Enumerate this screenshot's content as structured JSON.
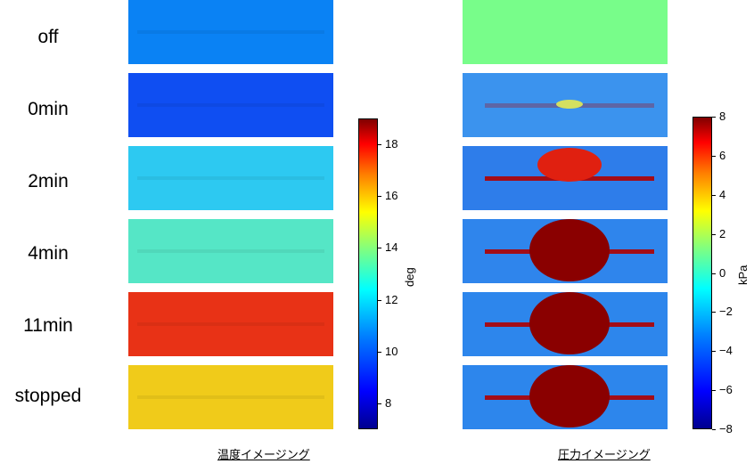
{
  "row_labels": [
    "off",
    "0min",
    "2min",
    "4min",
    "11min",
    "stopped"
  ],
  "temperature": {
    "caption": "温度イメージング",
    "colorbar": {
      "unit": "deg",
      "min": 7,
      "max": 19,
      "ticks": [
        "8",
        "10",
        "12",
        "14",
        "16",
        "18"
      ]
    },
    "panel_colors": [
      "#0a82f4",
      "#0f4ef2",
      "#2dc9f1",
      "#55e6c6",
      "#e83216",
      "#f0cb1a"
    ]
  },
  "pressure": {
    "caption": "圧力イメージング",
    "colorbar": {
      "unit": "kPa",
      "min": -8,
      "max": 8,
      "ticks": [
        "8",
        "6",
        "4",
        "2",
        "0",
        "−2",
        "−4",
        "−6",
        "−8"
      ]
    },
    "panel_colors": [
      "#78fd8a",
      "#3b93ee",
      "#2e7dea",
      "#2f85ec",
      "#2d86ec",
      "#2d86ec"
    ]
  },
  "chart_data": [
    {
      "type": "heatmap",
      "title": "温度イメージング",
      "rows": [
        "off",
        "0min",
        "2min",
        "4min",
        "11min",
        "stopped"
      ],
      "unit": "deg",
      "color_range": [
        7,
        19
      ],
      "approx_values": [
        10.0,
        9.0,
        11.8,
        12.8,
        17.5,
        15.5
      ]
    },
    {
      "type": "heatmap",
      "title": "圧力イメージング",
      "rows": [
        "off",
        "0min",
        "2min",
        "4min",
        "11min",
        "stopped"
      ],
      "unit": "kPa",
      "color_range": [
        -8,
        8
      ],
      "approx_values": [
        0.0,
        -3.0,
        -2.0,
        -2.5,
        -3.0,
        -3.0
      ],
      "hot_spot_values": [
        null,
        0.5,
        6.0,
        8.0,
        8.0,
        8.0
      ]
    }
  ]
}
